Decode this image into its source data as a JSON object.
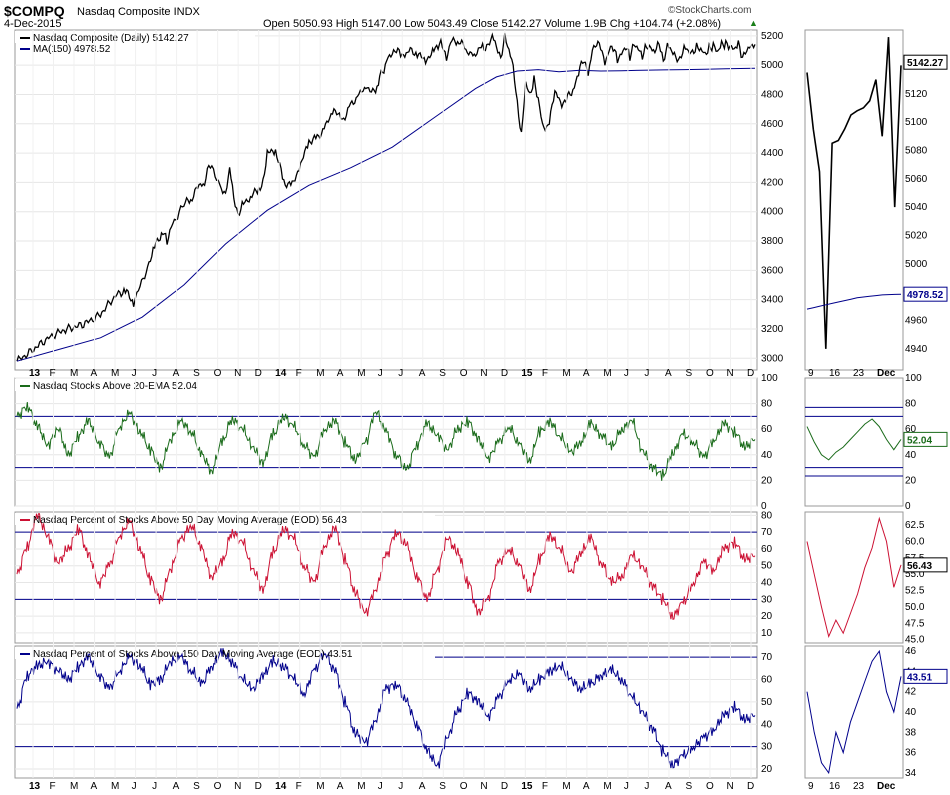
{
  "header": {
    "symbol": "$COMPQ",
    "name": "Nasdaq Composite INDX",
    "date": "4-Dec-2015",
    "ohlc": "Open 5050.93  High 5147.00  Low 5043.49  Close 5142.27  Volume 1.9B  Chg +104.74 (+2.08%)",
    "watermark": "©StockCharts.com",
    "up_glyph": "▲"
  },
  "colors": {
    "price": "#000000",
    "ma": "#00008b",
    "ema20": "#1a6b1a",
    "pct50": "#cc1133",
    "pct150": "#00008b",
    "grid": "#e6e6e6",
    "frame": "#999999"
  },
  "chart_data": [
    {
      "type": "line",
      "title": "Nasdaq Composite (Daily) 5142.27",
      "legend": [
        "Nasdaq Composite (Daily) 5142.27",
        "MA(150) 4978.52"
      ],
      "series": [
        {
          "name": "Nasdaq Composite (Daily)",
          "x": [
            0,
            4,
            8,
            12,
            16,
            20,
            24,
            26,
            28,
            31,
            33,
            35,
            36,
            37,
            40,
            42,
            44,
            45,
            46,
            49,
            50,
            51,
            52,
            53,
            54,
            56,
            58,
            59,
            60,
            62,
            64,
            66,
            68,
            70,
            72,
            74,
            76,
            78,
            80,
            82,
            84,
            86,
            87,
            88,
            89,
            90,
            91,
            92,
            93,
            94,
            96,
            98,
            100,
            101,
            102,
            103,
            104,
            106,
            108,
            110,
            111,
            112,
            113,
            114,
            115,
            116,
            117,
            118,
            119,
            120,
            121,
            122,
            123,
            124,
            125,
            126,
            127,
            128,
            129,
            130,
            131,
            132,
            133,
            134,
            135,
            136,
            137,
            138,
            139,
            140,
            141,
            142,
            143,
            144,
            145,
            146,
            147,
            148,
            149,
            150,
            151,
            152,
            153,
            154,
            155,
            156,
            157,
            158,
            159,
            160,
            161,
            162,
            163,
            164,
            165,
            166,
            167,
            168,
            169,
            170,
            171,
            172,
            173,
            174,
            175,
            176,
            177
          ],
          "values": [
            2980,
            3060,
            3150,
            3200,
            3230,
            3300,
            3440,
            3460,
            3380,
            3600,
            3760,
            3870,
            3800,
            3900,
            4050,
            4100,
            4200,
            4180,
            4330,
            4170,
            4120,
            4300,
            4100,
            3980,
            4050,
            4100,
            4160,
            4200,
            4400,
            4420,
            4200,
            4180,
            4320,
            4480,
            4500,
            4580,
            4700,
            4620,
            4720,
            4800,
            4850,
            4800,
            4920,
            4960,
            5060,
            5070,
            5100,
            5080,
            5060,
            5100,
            5080,
            5030,
            5100,
            5130,
            5150,
            5040,
            5160,
            5170,
            5100,
            5060,
            5130,
            5120,
            5140,
            5200,
            5130,
            5050,
            5200,
            5100,
            5000,
            4740,
            4520,
            4880,
            4800,
            4900,
            4760,
            4600,
            4560,
            4660,
            4820,
            4770,
            4720,
            4790,
            4800,
            4880,
            4980,
            5030,
            4940,
            5100,
            5140,
            5130,
            5010,
            5100,
            5120,
            5040,
            5080,
            5120,
            5060,
            5150,
            5110,
            5060,
            5140,
            5120,
            5090,
            5160,
            5030,
            5140,
            5100,
            5060,
            5040,
            5120,
            5100,
            5090,
            5125,
            5105,
            5080,
            5115,
            5130,
            5090,
            5150,
            5140,
            5120,
            5110,
            5150,
            5040,
            5100,
            5130,
            5142
          ]
        },
        {
          "name": "MA(150)",
          "x": [
            0,
            10,
            20,
            30,
            40,
            50,
            60,
            70,
            80,
            90,
            100,
            110,
            115,
            120,
            125,
            130,
            135,
            140,
            145,
            150,
            155,
            160,
            165,
            170,
            177
          ],
          "values": [
            2980,
            3060,
            3140,
            3280,
            3500,
            3780,
            4010,
            4180,
            4300,
            4440,
            4640,
            4840,
            4920,
            4960,
            4970,
            4955,
            4965,
            4960,
            4962,
            4966,
            4968,
            4970,
            4972,
            4975,
            4978.52
          ]
        }
      ],
      "ylim": [
        2920,
        5240
      ],
      "yticks": [
        3000,
        3200,
        3400,
        3600,
        3800,
        4000,
        4200,
        4400,
        4600,
        4800,
        5000,
        5200
      ],
      "zoom_ylim": [
        4925,
        5165
      ],
      "zoom_yticks": [
        4940,
        4960,
        4980,
        5000,
        5020,
        5040,
        5060,
        5080,
        5100,
        5120,
        5140
      ],
      "last_value_label": "5142.27",
      "ma_value_label": "4978.52",
      "zoom_price": [
        5135,
        5095,
        5065,
        4940,
        5085,
        5087,
        5095,
        5105,
        5108,
        5110,
        5115,
        5130,
        5090,
        5160,
        5040,
        5140
      ],
      "zoom_ma": [
        4968,
        4969,
        4970,
        4971,
        4972,
        4973,
        4974,
        4975,
        4976,
        4976.5,
        4977,
        4977.5,
        4978,
        4978.2,
        4978.4,
        4978.52
      ]
    },
    {
      "type": "line",
      "title": "Nasdaq Stocks Above 20-EMA 52.04",
      "series": [
        {
          "name": "Stocks Above 20-EMA",
          "values": [
            70,
            78,
            62,
            48,
            60,
            40,
            55,
            66,
            50,
            38,
            62,
            72,
            58,
            44,
            30,
            52,
            66,
            58,
            40,
            28,
            50,
            68,
            60,
            46,
            34,
            56,
            70,
            62,
            48,
            38,
            60,
            66,
            50,
            36,
            50,
            74,
            58,
            40,
            28,
            48,
            64,
            56,
            44,
            60,
            66,
            52,
            38,
            50,
            62,
            48,
            36,
            58,
            66,
            54,
            42,
            50,
            64,
            56,
            46,
            60,
            66,
            44,
            30,
            24,
            42,
            56,
            50,
            38,
            52,
            64,
            58,
            46,
            52
          ]
        }
      ],
      "ylim": [
        0,
        100
      ],
      "yticks": [
        0,
        20,
        40,
        60,
        80,
        100
      ],
      "ref_lines": [
        70,
        30
      ],
      "last_value_label": "52.04",
      "zoom_values": [
        62,
        50,
        40,
        36,
        42,
        46,
        52,
        58,
        64,
        68,
        62,
        52,
        44,
        52
      ]
    },
    {
      "type": "line",
      "title": "Nasdaq Percent of Stocks Above 50 Day Moving Average (EOD) 56.43",
      "series": [
        {
          "name": "Percent Above 50 DMA",
          "values": [
            45,
            62,
            80,
            68,
            52,
            60,
            72,
            56,
            40,
            50,
            68,
            76,
            60,
            42,
            30,
            48,
            66,
            74,
            60,
            44,
            52,
            70,
            64,
            48,
            36,
            58,
            72,
            66,
            50,
            40,
            62,
            72,
            54,
            34,
            22,
            36,
            56,
            70,
            62,
            44,
            30,
            48,
            66,
            58,
            40,
            22,
            32,
            52,
            60,
            50,
            36,
            54,
            68,
            60,
            46,
            58,
            66,
            52,
            40,
            44,
            56,
            50,
            38,
            30,
            20,
            28,
            40,
            52,
            48,
            60,
            64,
            54,
            56
          ]
        }
      ],
      "ylim": [
        4,
        82
      ],
      "yticks": [
        10,
        20,
        30,
        40,
        50,
        60,
        70,
        80
      ],
      "ref_lines": [
        70,
        30
      ],
      "last_value_label": "56.43",
      "zoom_ylim": [
        44.5,
        64.5
      ],
      "zoom_yticks": [
        45.0,
        47.5,
        50.0,
        52.5,
        55.0,
        57.5,
        60.0,
        62.5
      ],
      "zoom_values": [
        60,
        55,
        50,
        45.5,
        48,
        46,
        49,
        52,
        56,
        59,
        63.5,
        60,
        53,
        56.43
      ]
    },
    {
      "type": "line",
      "title": "Nasdaq Percent of Stocks Above 150 Day Moving Average (EOD) 43.51",
      "series": [
        {
          "name": "Percent Above 150 DMA",
          "values": [
            47,
            62,
            66,
            68,
            64,
            60,
            66,
            70,
            62,
            56,
            64,
            70,
            66,
            58,
            60,
            68,
            70,
            64,
            58,
            66,
            72,
            68,
            60,
            56,
            62,
            68,
            66,
            60,
            54,
            64,
            72,
            64,
            50,
            36,
            32,
            42,
            56,
            58,
            50,
            40,
            28,
            22,
            34,
            46,
            54,
            50,
            44,
            52,
            60,
            62,
            56,
            60,
            64,
            66,
            60,
            56,
            58,
            62,
            64,
            60,
            52,
            46,
            38,
            28,
            22,
            26,
            30,
            34,
            38,
            44,
            48,
            42,
            44
          ]
        }
      ],
      "ylim": [
        16,
        75
      ],
      "yticks": [
        20,
        30,
        40,
        50,
        60,
        70
      ],
      "ref_lines": [
        70,
        30
      ],
      "last_value_label": "43.51",
      "zoom_ylim": [
        33.5,
        46.5
      ],
      "zoom_yticks": [
        34,
        36,
        38,
        40,
        42,
        44,
        46
      ],
      "zoom_values": [
        42,
        38,
        35,
        34,
        38,
        36,
        39,
        41,
        43,
        45,
        46,
        42,
        40,
        43.51
      ]
    }
  ],
  "x_axis": {
    "labels": [
      "13",
      "F",
      "M",
      "A",
      "M",
      "J",
      "J",
      "A",
      "S",
      "O",
      "N",
      "D",
      "14",
      "F",
      "M",
      "A",
      "M",
      "J",
      "J",
      "A",
      "S",
      "O",
      "N",
      "D",
      "15",
      "F",
      "M",
      "A",
      "M",
      "J",
      "J",
      "A",
      "S",
      "O",
      "N",
      "D"
    ],
    "bold": [
      "13",
      "14",
      "15"
    ]
  },
  "zoom_axis": {
    "labels": [
      "9",
      "16",
      "23",
      "Dec"
    ],
    "bold": [
      "Dec"
    ]
  }
}
